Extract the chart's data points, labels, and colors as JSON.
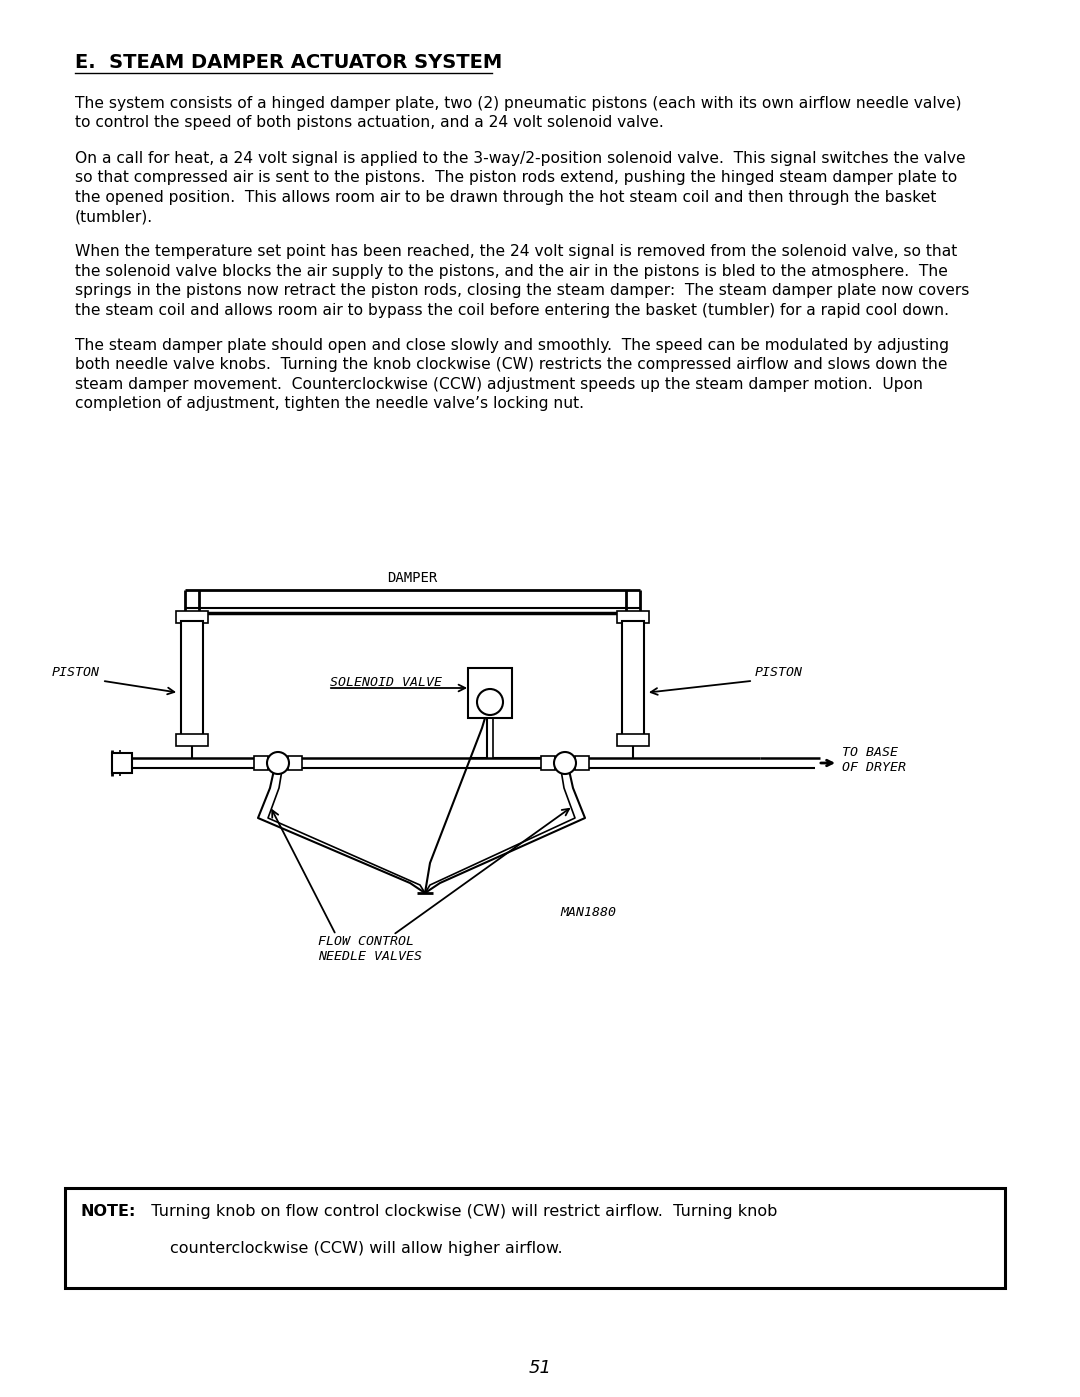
{
  "title": "E.  STEAM DAMPER ACTUATOR SYSTEM",
  "para1": "The system consists of a hinged damper plate, two (2) pneumatic pistons (each with its own airflow needle valve) to control the speed of both pistons actuation, and a 24 volt solenoid valve.",
  "para2": "On a call for heat, a 24 volt signal is applied to the 3-way/2-position solenoid valve.  This signal switches the valve so that compressed air is sent to the pistons.  The piston rods extend, pushing the hinged steam damper plate to the opened position.  This allows room air to be drawn through the hot steam coil and then through the basket (tumbler).",
  "para3": "When the temperature set point has been reached, the 24 volt signal is removed from the solenoid valve, so that the solenoid valve blocks the air supply to the pistons, and the air in the pistons is bled to the atmosphere.  The springs in the pistons now retract the piston rods, closing the steam damper:  The steam damper plate now covers the steam coil and allows room air to bypass the coil before entering the basket (tumbler) for a rapid cool down.",
  "para4": "The steam damper plate should open and close slowly and smoothly.  The speed can be modulated by adjusting both needle valve knobs.  Turning the knob clockwise (CW) restricts the compressed airflow and slows down the steam damper movement.  Counterclockwise (CCW) adjustment speeds up the steam damper motion.  Upon completion of adjustment, tighten the needle valve’s locking nut.",
  "note_bold": "NOTE:",
  "note_line1": "  Turning knob on flow control clockwise (CW) will restrict airflow.  Turning knob",
  "note_line2": "counterclockwise (CCW) will allow higher airflow.",
  "page_number": "51",
  "diagram_label_damper": "DAMPER",
  "diagram_label_piston_l": "PISTON",
  "diagram_label_piston_r": "PISTON",
  "diagram_label_solenoid": "SOLENOID VALVE",
  "diagram_label_flow": "FLOW CONTROL\nNEEDLE VALVES",
  "diagram_label_base": "TO BASE\nOF DRYER",
  "diagram_label_man": "MAN1880",
  "bg_color": "#ffffff",
  "text_color": "#000000",
  "line_color": "#000000",
  "para1_lines": [
    "The system consists of a hinged damper plate, two (2) pneumatic pistons (each with its own airflow needle valve)",
    "to control the speed of both pistons actuation, and a 24 volt solenoid valve."
  ],
  "para2_lines": [
    "On a call for heat, a 24 volt signal is applied to the 3-way/2-position solenoid valve.  This signal switches the valve",
    "so that compressed air is sent to the pistons.  The piston rods extend, pushing the hinged steam damper plate to",
    "the opened position.  This allows room air to be drawn through the hot steam coil and then through the basket",
    "(tumbler)."
  ],
  "para3_lines": [
    "When the temperature set point has been reached, the 24 volt signal is removed from the solenoid valve, so that",
    "the solenoid valve blocks the air supply to the pistons, and the air in the pistons is bled to the atmosphere.  The",
    "springs in the pistons now retract the piston rods, closing the steam damper:  The steam damper plate now covers",
    "the steam coil and allows room air to bypass the coil before entering the basket (tumbler) for a rapid cool down."
  ],
  "para4_lines": [
    "The steam damper plate should open and close slowly and smoothly.  The speed can be modulated by adjusting",
    "both needle valve knobs.  Turning the knob clockwise (CW) restricts the compressed airflow and slows down the",
    "steam damper movement.  Counterclockwise (CCW) adjustment speeds up the steam damper motion.  Upon",
    "completion of adjustment, tighten the needle valve’s locking nut."
  ]
}
